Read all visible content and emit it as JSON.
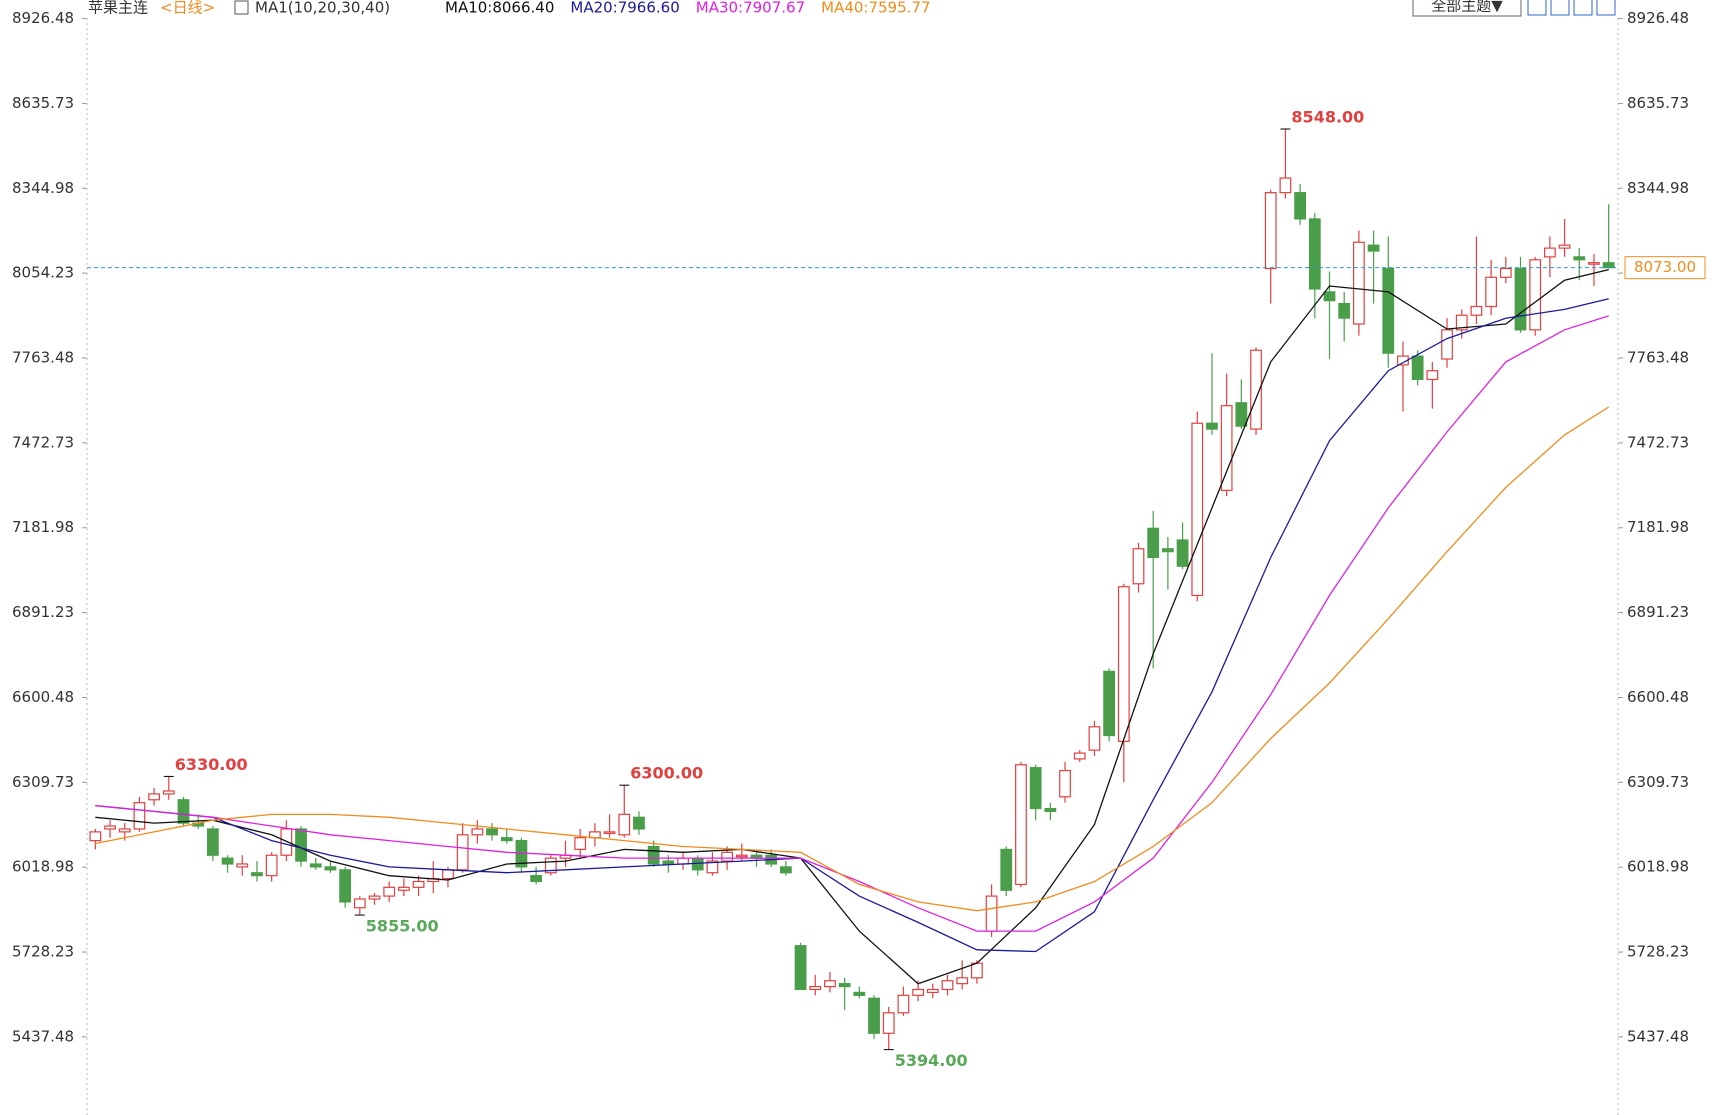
{
  "chart_data": {
    "type": "candlestick",
    "title": "苹果主连",
    "period": "<日线>",
    "indicator": "MA1(10,20,30,40)",
    "theme_button": "全部主题▼",
    "ylim": [
      5170,
      8990
    ],
    "yticks": [
      8926.48,
      8635.73,
      8344.98,
      8054.23,
      7763.48,
      7472.73,
      7181.98,
      6891.23,
      6600.48,
      6309.73,
      6018.98,
      5728.23,
      5437.48
    ],
    "up_color": "#e04040",
    "down_color": "#4a9e4a",
    "open": [
      6110,
      6150,
      6140,
      6150,
      6250,
      6270,
      6250,
      6170,
      6150,
      6050,
      6020,
      6000,
      5990,
      6060,
      6150,
      6030,
      6020,
      6010,
      5880,
      5910,
      5920,
      5940,
      5950,
      5970,
      5980,
      6010,
      6130,
      6150,
      6120,
      6110,
      5990,
      6000,
      6050,
      6080,
      6120,
      6140,
      6130,
      6190,
      6090,
      6040,
      6030,
      6050,
      6000,
      6040,
      6060,
      6060,
      6060,
      6020,
      5750,
      5600,
      5610,
      5620,
      5590,
      5570,
      5450,
      5520,
      5580,
      5590,
      5600,
      5620,
      5640,
      5800,
      6080,
      5960,
      6360,
      6220,
      6260,
      6390,
      6420,
      6690,
      6450,
      6990,
      7180,
      7110,
      7140,
      6950,
      7540,
      7310,
      7610,
      7520,
      8070,
      8330,
      8330,
      8240,
      7990,
      7950,
      7880,
      8150,
      8070,
      7740,
      7770,
      7690,
      7760,
      7860,
      7910,
      7940,
      8040,
      8070,
      7860,
      8110,
      8140,
      8110,
      8090,
      8090
    ],
    "high": [
      6150,
      6180,
      6170,
      6260,
      6290,
      6330,
      6260,
      6200,
      6160,
      6060,
      6060,
      6040,
      6070,
      6180,
      6160,
      6050,
      6040,
      6020,
      5920,
      5930,
      5970,
      5980,
      5990,
      6040,
      6020,
      6170,
      6180,
      6170,
      6150,
      6120,
      6020,
      6060,
      6110,
      6150,
      6170,
      6200,
      6300,
      6210,
      6110,
      6060,
      6070,
      6060,
      6070,
      6090,
      6100,
      6080,
      6080,
      6040,
      5760,
      5650,
      5660,
      5640,
      5610,
      5580,
      5540,
      5610,
      5630,
      5620,
      5650,
      5700,
      5700,
      5960,
      6090,
      6380,
      6370,
      6240,
      6380,
      6420,
      6520,
      6700,
      6990,
      7130,
      7240,
      7150,
      7200,
      7580,
      7780,
      7710,
      7690,
      7800,
      8340,
      8548,
      8360,
      8260,
      8060,
      7990,
      8200,
      8200,
      8180,
      7820,
      7790,
      7750,
      7900,
      7930,
      8180,
      8100,
      8110,
      8110,
      8110,
      8180,
      8240,
      8140,
      8120,
      8290
    ],
    "low": [
      6080,
      6120,
      6110,
      6140,
      6230,
      6250,
      6160,
      6150,
      6040,
      6000,
      5990,
      5970,
      5970,
      6040,
      6020,
      6010,
      6000,
      5880,
      5855,
      5890,
      5900,
      5920,
      5920,
      5930,
      5950,
      6000,
      6100,
      6110,
      6100,
      6000,
      5960,
      5990,
      6020,
      6050,
      6090,
      6120,
      6120,
      6130,
      6020,
      6000,
      6010,
      5990,
      5990,
      6010,
      6040,
      6020,
      6020,
      5990,
      5600,
      5580,
      5590,
      5530,
      5570,
      5430,
      5394,
      5510,
      5560,
      5570,
      5580,
      5600,
      5620,
      5780,
      5920,
      5950,
      6180,
      6180,
      6240,
      6380,
      6400,
      6450,
      6310,
      6960,
      6700,
      6970,
      7040,
      6930,
      7500,
      7290,
      7520,
      7500,
      7950,
      8310,
      8220,
      7900,
      7760,
      7820,
      7840,
      7950,
      7730,
      7580,
      7670,
      7590,
      7730,
      7830,
      7880,
      7910,
      8020,
      7850,
      7840,
      8040,
      8110,
      8030,
      8010,
      8070
    ],
    "close": [
      6140,
      6160,
      6150,
      6240,
      6270,
      6280,
      6170,
      6160,
      6060,
      6030,
      6030,
      5990,
      6060,
      6150,
      6040,
      6020,
      6010,
      5900,
      5910,
      5920,
      5950,
      5950,
      5970,
      5980,
      6010,
      6130,
      6150,
      6130,
      6110,
      6020,
      5970,
      6050,
      6060,
      6120,
      6140,
      6140,
      6200,
      6150,
      6030,
      6030,
      6050,
      6010,
      6040,
      6070,
      6060,
      6050,
      6030,
      6000,
      5600,
      5610,
      5630,
      5610,
      5580,
      5450,
      5520,
      5580,
      5600,
      5600,
      5630,
      5640,
      5690,
      5920,
      5940,
      6370,
      6220,
      6210,
      6350,
      6410,
      6500,
      6470,
      6980,
      7110,
      7080,
      7100,
      7050,
      7540,
      7520,
      7600,
      7530,
      7790,
      8330,
      8380,
      8240,
      8000,
      7960,
      7900,
      8160,
      8130,
      7780,
      7770,
      7690,
      7720,
      7860,
      7910,
      7940,
      8040,
      8070,
      7860,
      8100,
      8140,
      8150,
      8100,
      8090,
      8073
    ],
    "series": [
      {
        "name": "MA10:8066.40",
        "color": "#111111",
        "x": [
          0,
          4,
          8,
          12,
          16,
          20,
          24,
          28,
          32,
          36,
          40,
          44,
          48,
          52,
          56,
          60,
          64,
          68,
          72,
          76,
          80,
          84,
          88,
          92,
          96,
          100,
          103
        ],
        "values": [
          6190,
          6170,
          6180,
          6130,
          6040,
          5990,
          5975,
          6030,
          6040,
          6080,
          6070,
          6080,
          6050,
          5800,
          5620,
          5690,
          5880,
          6165,
          6750,
          7250,
          7750,
          8010,
          7990,
          7863,
          7880,
          8030,
          8066.4
        ]
      },
      {
        "name": "MA20:7966.60",
        "color": "#1a1a9c",
        "x": [
          0,
          4,
          8,
          12,
          16,
          20,
          24,
          28,
          32,
          36,
          40,
          44,
          48,
          52,
          56,
          60,
          64,
          68,
          72,
          76,
          80,
          84,
          88,
          92,
          96,
          100,
          103
        ],
        "values": [
          6230,
          6210,
          6190,
          6110,
          6060,
          6020,
          6010,
          6000,
          6010,
          6020,
          6030,
          6040,
          6050,
          5920,
          5830,
          5736,
          5730,
          5866,
          6250,
          6620,
          7080,
          7480,
          7720,
          7830,
          7900,
          7930,
          7966.6
        ]
      },
      {
        "name": "MA30:7907.67",
        "color": "#e020e0",
        "x": [
          0,
          4,
          8,
          12,
          16,
          20,
          24,
          28,
          32,
          36,
          40,
          44,
          48,
          52,
          56,
          60,
          64,
          68,
          72,
          76,
          80,
          84,
          88,
          92,
          96,
          100,
          103
        ],
        "values": [
          6230,
          6210,
          6190,
          6160,
          6130,
          6110,
          6090,
          6070,
          6060,
          6050,
          6050,
          6050,
          6050,
          5970,
          5880,
          5800,
          5800,
          5900,
          6050,
          6310,
          6610,
          6950,
          7250,
          7510,
          7750,
          7860,
          7907.67
        ]
      },
      {
        "name": "MA40:7595.77",
        "color": "#f08c1e",
        "x": [
          0,
          4,
          8,
          12,
          16,
          20,
          24,
          28,
          32,
          36,
          40,
          44,
          48,
          52,
          56,
          60,
          64,
          68,
          72,
          76,
          80,
          84,
          88,
          92,
          96,
          100,
          103
        ],
        "values": [
          6100,
          6140,
          6180,
          6200,
          6200,
          6190,
          6170,
          6150,
          6130,
          6110,
          6090,
          6080,
          6070,
          5960,
          5900,
          5870,
          5900,
          5970,
          6090,
          6240,
          6460,
          6650,
          6870,
          7100,
          7320,
          7500,
          7595.77
        ]
      }
    ],
    "annotations": [
      {
        "value": 8548,
        "label": "8548.00",
        "color": "#e04040"
      },
      {
        "value": 6330,
        "label": "6330.00",
        "color": "#e04040"
      },
      {
        "value": 6300,
        "label": "6300.00",
        "color": "#e04040"
      },
      {
        "value": 5855,
        "label": "5855.00",
        "color": "#5aa85a"
      },
      {
        "value": 5394,
        "label": "5394.00",
        "color": "#5aa85a"
      }
    ],
    "last_price": {
      "value": 8073,
      "label": "8073.00",
      "color": "#f08c1e",
      "line_color": "#3399cc"
    }
  }
}
